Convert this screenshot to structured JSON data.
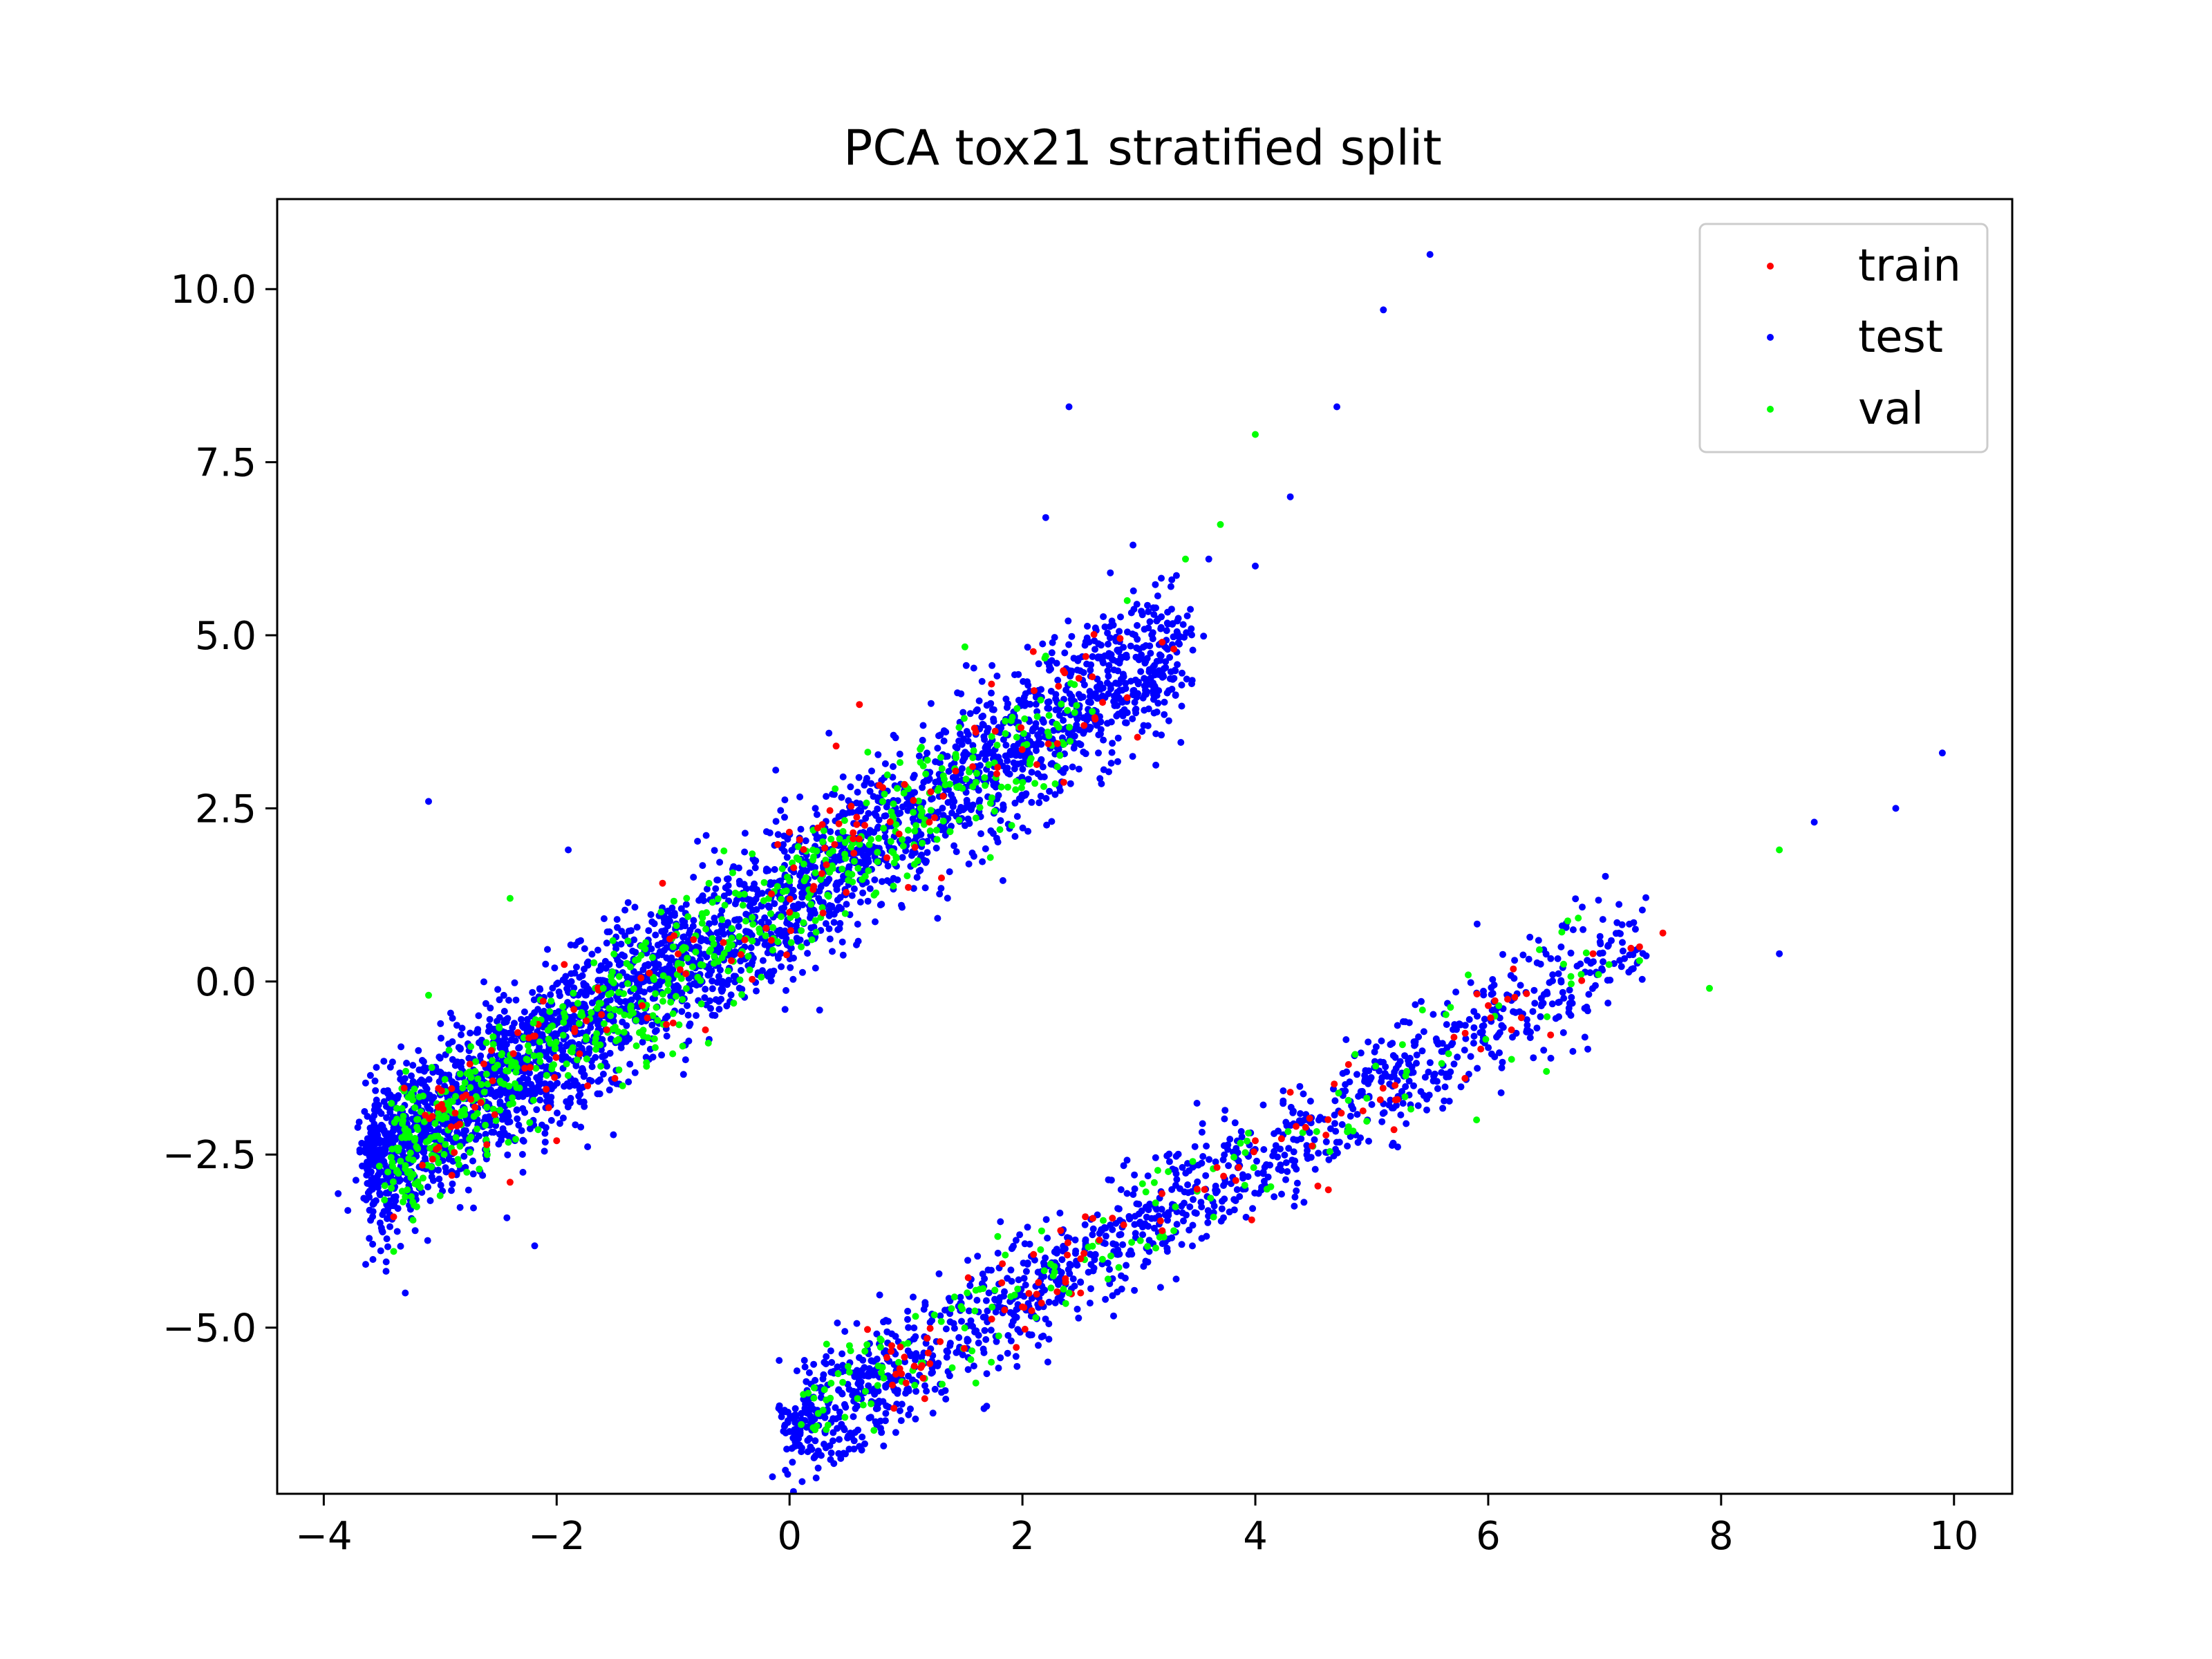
{
  "chart_data": {
    "type": "scatter",
    "title": "PCA tox21 stratified split",
    "xlabel": "",
    "ylabel": "",
    "xlim": [
      -4.4,
      10.5
    ],
    "ylim": [
      -7.4,
      11.3
    ],
    "x_ticks": [
      -4,
      -2,
      0,
      2,
      4,
      6,
      8,
      10
    ],
    "x_tick_labels": [
      "−4",
      "−2",
      "0",
      "2",
      "4",
      "6",
      "8",
      "10"
    ],
    "y_ticks": [
      -5.0,
      -2.5,
      0.0,
      2.5,
      5.0,
      7.5,
      10.0
    ],
    "y_tick_labels": [
      "−5.0",
      "−2.5",
      "0.0",
      "2.5",
      "5.0",
      "7.5",
      "10.0"
    ],
    "grid": false,
    "legend_position": "top-right",
    "clusters": [
      {
        "id": "upper",
        "x_range": [
          -3.6,
          5.5
        ],
        "relation": "y ≈ 1.25 + 1.08x",
        "extent_y_at_x_min": -3.5,
        "extent_y_at_x_max": 10.5
      },
      {
        "id": "lower",
        "x_range": [
          0.0,
          9.9
        ],
        "relation": "y ≈ -6.5 + 0.98x",
        "extent_y_at_x_min": -6.5,
        "extent_y_at_x_max": 3.3
      }
    ],
    "series": [
      {
        "name": "train",
        "color": "#ff0000",
        "sample_points": [
          [
            -3.4,
            -3.4
          ],
          [
            -2.9,
            -2.8
          ],
          [
            -2.4,
            -2.9
          ],
          [
            -2.0,
            -2.3
          ],
          [
            -1.5,
            -1.4
          ],
          [
            -1.0,
            -0.6
          ],
          [
            -0.5,
            0.3
          ],
          [
            0.0,
            1.0
          ],
          [
            0.4,
            3.4
          ],
          [
            0.6,
            4.0
          ],
          [
            0.8,
            2.8
          ],
          [
            1.2,
            2.3
          ],
          [
            1.6,
            3.6
          ],
          [
            2.1,
            4.2
          ],
          [
            2.6,
            4.4
          ],
          [
            2.9,
            4.1
          ],
          [
            3.2,
            4.9
          ],
          [
            3.3,
            4.8
          ],
          [
            1.0,
            -5.8
          ],
          [
            1.5,
            -5.3
          ],
          [
            2.0,
            -4.7
          ],
          [
            2.5,
            -4.5
          ],
          [
            3.2,
            -3.6
          ],
          [
            3.5,
            -3.0
          ],
          [
            4.0,
            -2.3
          ],
          [
            4.3,
            -1.6
          ],
          [
            4.8,
            -1.2
          ],
          [
            5.2,
            -1.5
          ],
          [
            5.8,
            -1.4
          ],
          [
            6.2,
            -0.7
          ],
          [
            6.9,
            0.4
          ],
          [
            7.3,
            0.5
          ],
          [
            7.5,
            0.7
          ]
        ]
      },
      {
        "name": "test",
        "color": "#0000ff",
        "sample_points": [
          [
            5.5,
            10.5
          ],
          [
            5.1,
            9.7
          ],
          [
            2.4,
            8.3
          ],
          [
            4.7,
            8.3
          ],
          [
            4.3,
            7.0
          ],
          [
            3.6,
            6.1
          ],
          [
            4.0,
            6.0
          ],
          [
            2.2,
            6.7
          ],
          [
            9.9,
            3.3
          ],
          [
            9.5,
            2.5
          ],
          [
            8.8,
            2.3
          ],
          [
            8.5,
            0.4
          ],
          [
            -3.3,
            -4.5
          ],
          [
            -3.5,
            -3.6
          ],
          [
            0.0,
            -6.5
          ],
          [
            -3.1,
            2.6
          ],
          [
            -1.9,
            1.9
          ]
        ]
      },
      {
        "name": "val",
        "color": "#00ff00",
        "sample_points": [
          [
            4.0,
            7.9
          ],
          [
            3.7,
            6.6
          ],
          [
            3.4,
            6.1
          ],
          [
            2.9,
            5.5
          ],
          [
            2.2,
            4.7
          ],
          [
            1.5,
            3.8
          ],
          [
            0.8,
            2.6
          ],
          [
            0.2,
            1.9
          ],
          [
            -0.4,
            1.1
          ],
          [
            -1.0,
            0.5
          ],
          [
            -1.6,
            -0.1
          ],
          [
            -2.2,
            -0.6
          ],
          [
            -2.7,
            -1.3
          ],
          [
            -3.1,
            -2.3
          ],
          [
            -3.4,
            -3.9
          ],
          [
            -3.1,
            -0.2
          ],
          [
            -2.4,
            1.2
          ],
          [
            0.1,
            0.5
          ],
          [
            2.6,
            3.9
          ],
          [
            2.3,
            3.1
          ],
          [
            0.1,
            -6.4
          ],
          [
            0.7,
            -6.1
          ],
          [
            1.6,
            -5.8
          ],
          [
            2.4,
            -4.5
          ],
          [
            3.3,
            -3.6
          ],
          [
            4.1,
            -3.0
          ],
          [
            4.8,
            -2.1
          ],
          [
            5.3,
            -1.3
          ],
          [
            5.9,
            -2.0
          ],
          [
            6.5,
            -1.3
          ],
          [
            7.3,
            0.3
          ],
          [
            7.9,
            -0.1
          ],
          [
            8.5,
            1.9
          ]
        ]
      }
    ]
  }
}
